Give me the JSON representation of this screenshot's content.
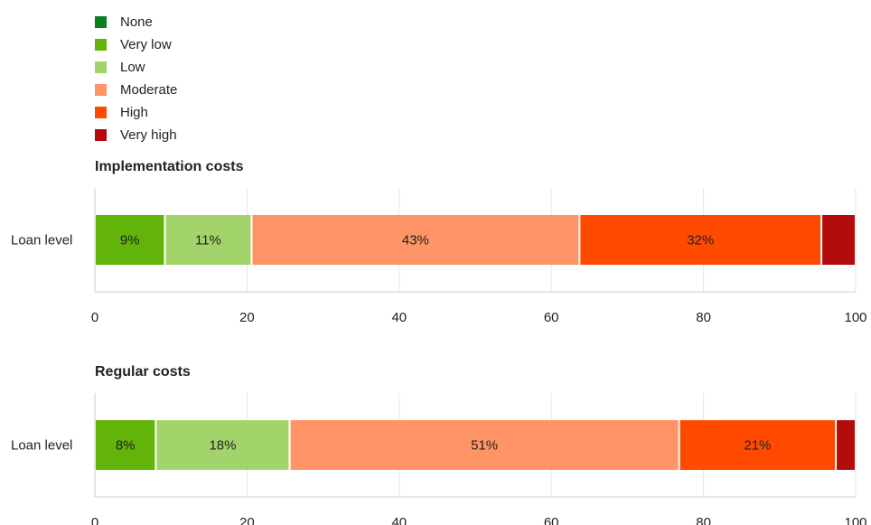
{
  "legend": [
    {
      "name": "None",
      "color": "#0a7d1e"
    },
    {
      "name": "Very low",
      "color": "#62b30a"
    },
    {
      "name": "Low",
      "color": "#a3d46b"
    },
    {
      "name": "Moderate",
      "color": "#ff9466"
    },
    {
      "name": "High",
      "color": "#ff4a00"
    },
    {
      "name": "Very high",
      "color": "#b30b0b"
    }
  ],
  "chart_data": [
    {
      "type": "bar",
      "orientation": "horizontal",
      "stacked": true,
      "title": "Implementation costs",
      "categories": [
        "Loan level"
      ],
      "series": [
        {
          "name": "None",
          "values": [
            0
          ],
          "label": ""
        },
        {
          "name": "Very low",
          "values": [
            9.2
          ],
          "label": "9%"
        },
        {
          "name": "Low",
          "values": [
            11.4
          ],
          "label": "11%"
        },
        {
          "name": "Moderate",
          "values": [
            43.1
          ],
          "label": "43%"
        },
        {
          "name": "High",
          "values": [
            31.8
          ],
          "label": "32%"
        },
        {
          "name": "Very high",
          "values": [
            4.5
          ],
          "label": ""
        }
      ],
      "xlim": [
        0,
        100
      ],
      "xticks": [
        "0",
        "20",
        "40",
        "60",
        "80",
        "100"
      ],
      "grid": true
    },
    {
      "type": "bar",
      "orientation": "horizontal",
      "stacked": true,
      "title": "Regular costs",
      "categories": [
        "Loan level"
      ],
      "series": [
        {
          "name": "None",
          "values": [
            0
          ],
          "label": ""
        },
        {
          "name": "Very low",
          "values": [
            8.0
          ],
          "label": "8%"
        },
        {
          "name": "Low",
          "values": [
            17.6
          ],
          "label": "18%"
        },
        {
          "name": "Moderate",
          "values": [
            51.2
          ],
          "label": "51%"
        },
        {
          "name": "High",
          "values": [
            20.6
          ],
          "label": "21%"
        },
        {
          "name": "Very high",
          "values": [
            2.6
          ],
          "label": ""
        }
      ],
      "xlim": [
        0,
        100
      ],
      "xticks": [
        "0",
        "20",
        "40",
        "60",
        "80",
        "100"
      ],
      "grid": true
    }
  ]
}
